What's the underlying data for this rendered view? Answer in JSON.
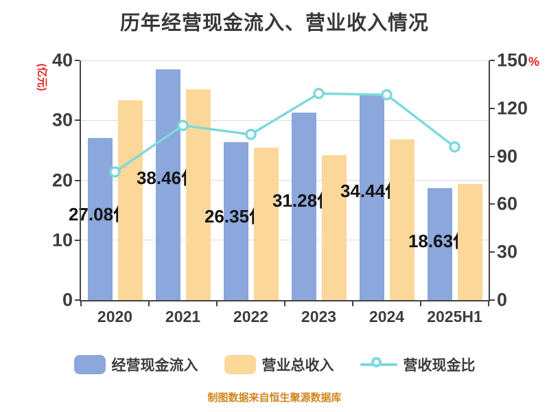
{
  "title": "历年经营现金流入、营业收入情况",
  "left_axis": {
    "unit": "(亿元)",
    "ticks": [
      40,
      30,
      20,
      10,
      0
    ],
    "max": 40
  },
  "right_axis": {
    "unit": "%",
    "ticks": [
      150,
      120,
      90,
      60,
      30,
      0
    ],
    "max": 150
  },
  "legend": {
    "cash_inflow": "经营现金流入",
    "revenue": "营业总收入",
    "ratio": "营收现金比"
  },
  "footer": "制图数据来自恒生聚源数据库",
  "colors": {
    "cash_inflow_bar": "#8ba7db",
    "revenue_bar": "#fbd79a",
    "ratio_line": "#7ed9db",
    "axis_unit_red": "#e02222",
    "footer_orange": "#d0861e",
    "title_text": "#383838",
    "tick_text": "#3d3d3d",
    "gridline": "#dbdbdb"
  },
  "chart_data": {
    "type": "bar",
    "title": "历年经营现金流入、营业收入情况",
    "categories": [
      "2020",
      "2021",
      "2022",
      "2023",
      "2024",
      "2025H1"
    ],
    "series": [
      {
        "name": "经营现金流入",
        "type": "bar",
        "axis": "left",
        "values": [
          27.08,
          38.46,
          26.35,
          31.28,
          34.44,
          18.63
        ],
        "labels": [
          "27.08亿",
          "38.46亿",
          "26.35亿",
          "31.28亿",
          "34.44亿",
          "18.63亿"
        ],
        "color": "#8ba7db"
      },
      {
        "name": "营业总收入",
        "type": "bar",
        "axis": "left",
        "values": [
          33.4,
          35.2,
          25.4,
          24.2,
          26.8,
          19.4
        ],
        "color": "#fbd79a"
      },
      {
        "name": "营收现金比",
        "type": "line",
        "axis": "right",
        "values": [
          80.2,
          109.3,
          103.7,
          129.3,
          128.5,
          95.9
        ],
        "color": "#7ed9db",
        "marker": "circle-white-fill"
      }
    ],
    "xlabel": "",
    "ylabel_left": "(亿元)",
    "ylabel_right": "%",
    "left_ylim": [
      0,
      40
    ],
    "right_ylim": [
      0,
      150
    ],
    "grid": true,
    "legend_position": "bottom"
  }
}
